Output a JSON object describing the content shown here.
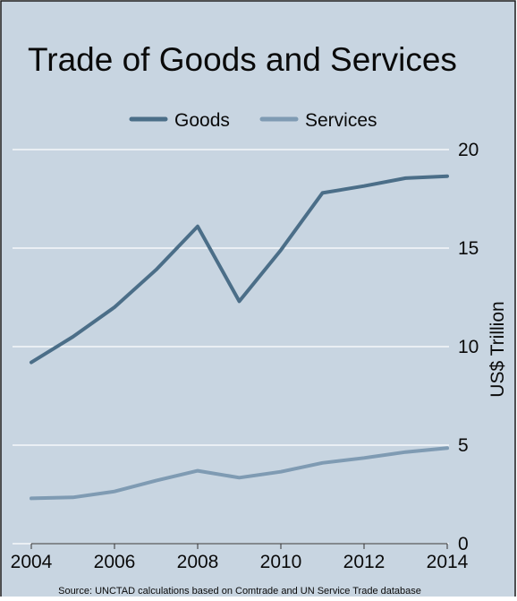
{
  "colors": {
    "background": "#c8d5e1",
    "goods": "#4b6e88",
    "services": "#7f9bb3",
    "grid": "#ffffff",
    "text": "#0a0a0a",
    "border": "#1a1a1a"
  },
  "source": "Source: UNCTAD calculations based on Comtrade and UN Service Trade database",
  "chart_data": {
    "type": "line",
    "title": "Trade of Goods and Services",
    "xlabel": "",
    "ylabel": "US$ Trillion",
    "x": [
      2004,
      2005,
      2006,
      2007,
      2008,
      2009,
      2010,
      2011,
      2012,
      2013,
      2014
    ],
    "xticks": [
      "2004",
      "2006",
      "2008",
      "2010",
      "2012",
      "2014"
    ],
    "xlim": [
      2004,
      2014
    ],
    "yticks": [
      "0",
      "5",
      "10",
      "15",
      "20"
    ],
    "ylim": [
      0,
      20
    ],
    "grid": true,
    "legend": "top",
    "series": [
      {
        "name": "Goods",
        "values": [
          9.2,
          10.5,
          12.0,
          13.9,
          16.1,
          12.3,
          14.9,
          17.8,
          18.15,
          18.55,
          18.65
        ]
      },
      {
        "name": "Services",
        "values": [
          2.3,
          2.35,
          2.65,
          3.2,
          3.7,
          3.35,
          3.65,
          4.1,
          4.35,
          4.65,
          4.85
        ]
      }
    ]
  }
}
